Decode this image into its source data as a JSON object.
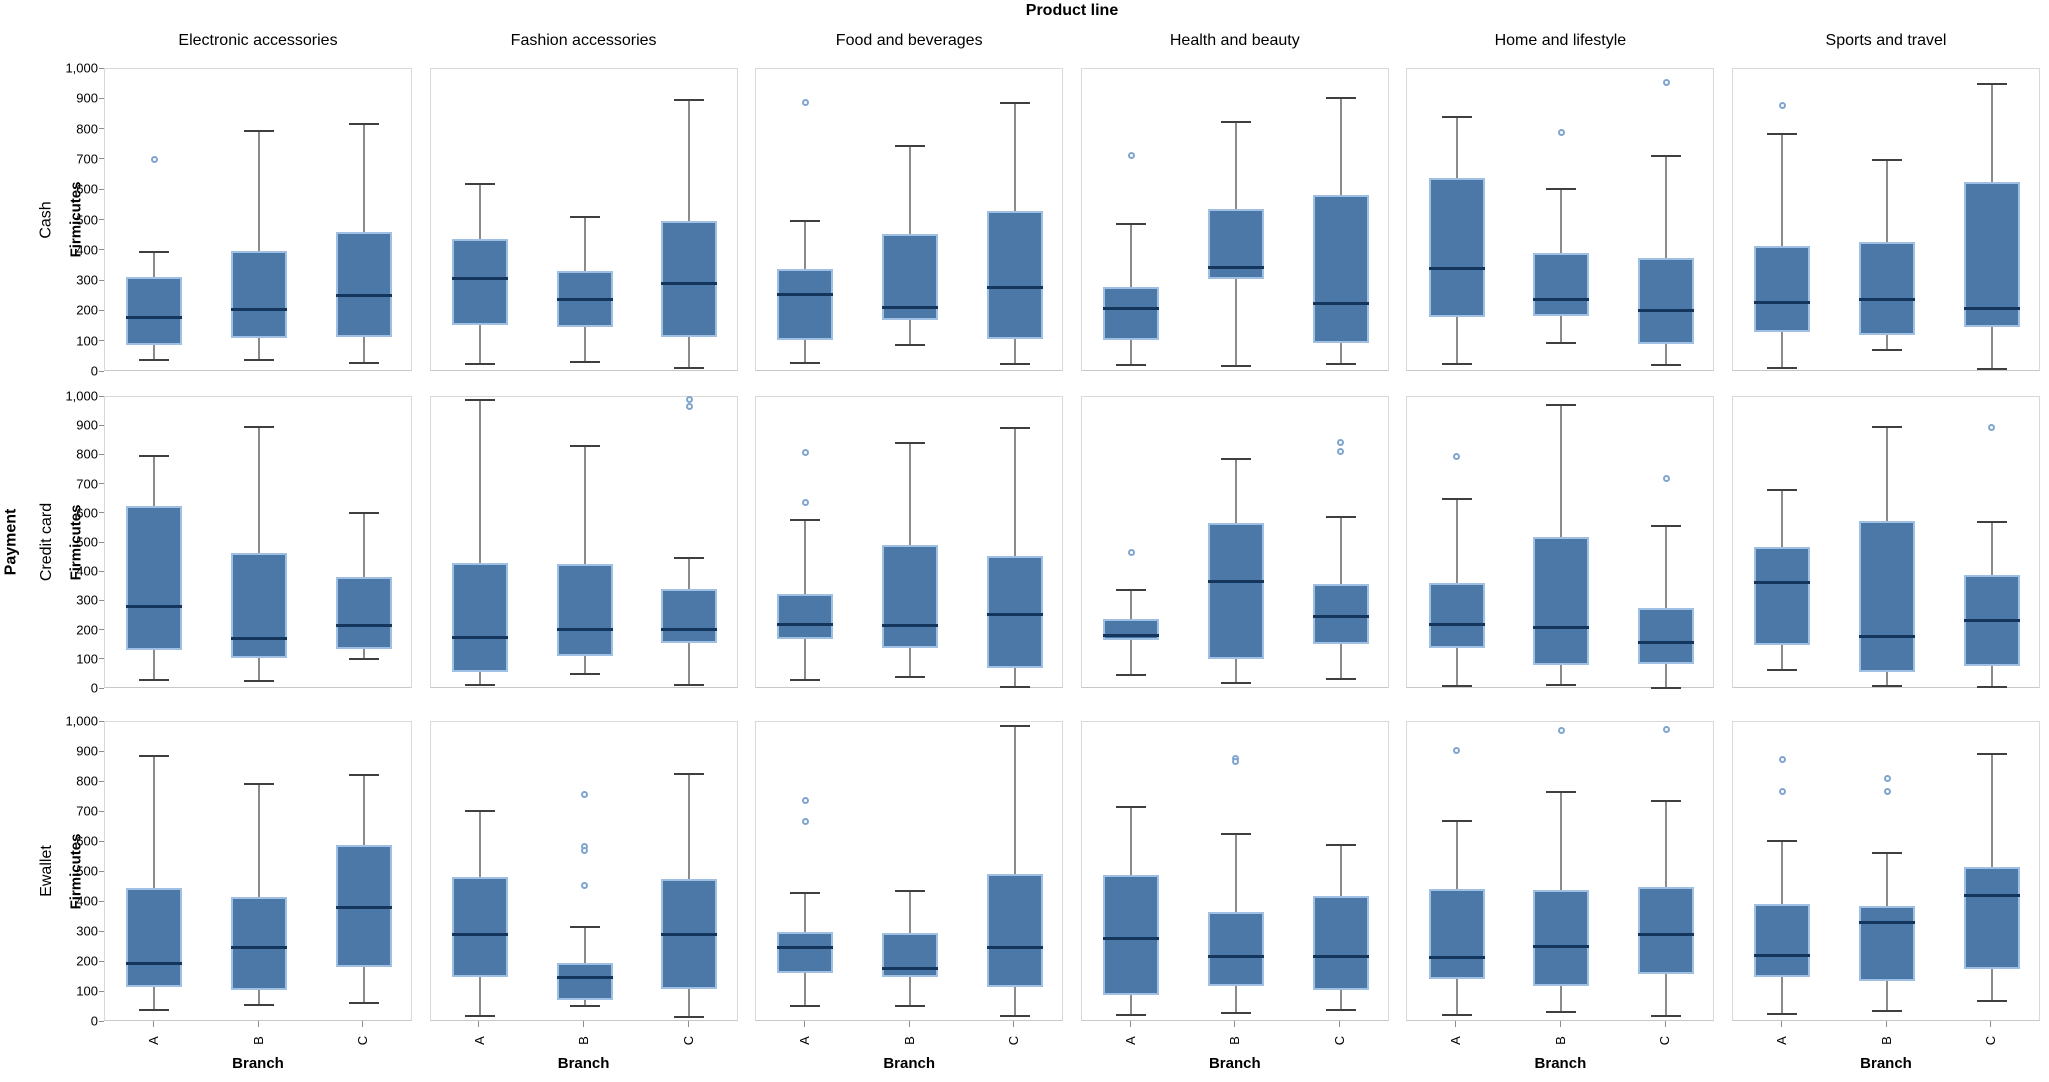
{
  "figure": {
    "title": "Product line",
    "outer_row_label": "Payment"
  },
  "chart_data": {
    "type": "boxplot_grid",
    "title": "Product line",
    "xlabel": "Branch",
    "ylabel": "Firmicutes",
    "x_categories": [
      "A",
      "B",
      "C"
    ],
    "columns": [
      "Electronic accessories",
      "Fashion accessories",
      "Food and beverages",
      "Health and beauty",
      "Home and lifestyle",
      "Sports and travel"
    ],
    "rows": [
      "Cash",
      "Credit card",
      "Ewallet"
    ],
    "ylim": [
      0,
      1000
    ],
    "yticks": [
      0,
      100,
      200,
      300,
      400,
      500,
      600,
      700,
      800,
      900,
      1000
    ],
    "ytick_labels": [
      "0",
      "100",
      "200",
      "300",
      "400",
      "500",
      "600",
      "700",
      "800",
      "900",
      "1,000"
    ],
    "legend": "none",
    "grid": "off",
    "colors": {
      "box_fill": "#4C78A8",
      "box_edge": "#9FC0E2",
      "median": "#14355C",
      "whisker": "#8A8A8A",
      "cap": "#3F3F3F",
      "outlier": "#7FA5CE",
      "panel_border": "#D9D9D9",
      "tick": "#8C8C8C"
    },
    "cells": [
      [
        [
          {
            "low": 40,
            "q1": 90,
            "med": 180,
            "q3": 315,
            "high": 395,
            "out": [
              700
            ]
          },
          {
            "low": 40,
            "q1": 113,
            "med": 205,
            "q3": 400,
            "high": 795,
            "out": []
          },
          {
            "low": 30,
            "q1": 114,
            "med": 251,
            "q3": 461,
            "high": 820,
            "out": []
          }
        ],
        [
          {
            "low": 25,
            "q1": 155,
            "med": 308,
            "q3": 438,
            "high": 619,
            "out": []
          },
          {
            "low": 33,
            "q1": 149,
            "med": 238,
            "q3": 333,
            "high": 510,
            "out": []
          },
          {
            "low": 13,
            "q1": 116,
            "med": 293,
            "q3": 497,
            "high": 899,
            "out": []
          }
        ],
        [
          {
            "low": 30,
            "q1": 107,
            "med": 257,
            "q3": 339,
            "high": 499,
            "out": [
              889
            ]
          },
          {
            "low": 90,
            "q1": 171,
            "med": 213,
            "q3": 455,
            "high": 746,
            "out": []
          },
          {
            "low": 25,
            "q1": 108,
            "med": 279,
            "q3": 533,
            "high": 889,
            "out": []
          }
        ],
        [
          {
            "low": 22,
            "q1": 105,
            "med": 208,
            "q3": 280,
            "high": 488,
            "out": [
              713
            ]
          },
          {
            "low": 19,
            "q1": 307,
            "med": 345,
            "q3": 538,
            "high": 826,
            "out": []
          },
          {
            "low": 27,
            "q1": 97,
            "med": 226,
            "q3": 583,
            "high": 905,
            "out": []
          }
        ],
        [
          {
            "low": 27,
            "q1": 183,
            "med": 342,
            "q3": 640,
            "high": 843,
            "out": []
          },
          {
            "low": 97,
            "q1": 184,
            "med": 240,
            "q3": 393,
            "high": 603,
            "out": [
              791
            ]
          },
          {
            "low": 24,
            "q1": 92,
            "med": 202,
            "q3": 376,
            "high": 713,
            "out": [
              956
            ]
          }
        ],
        [
          {
            "low": 13,
            "q1": 133,
            "med": 230,
            "q3": 417,
            "high": 786,
            "out": [
              881
            ]
          },
          {
            "low": 74,
            "q1": 122,
            "med": 239,
            "q3": 429,
            "high": 700,
            "out": []
          },
          {
            "low": 11,
            "q1": 147,
            "med": 211,
            "q3": 628,
            "high": 952,
            "out": []
          }
        ]
      ],
      [
        [
          {
            "low": 30,
            "q1": 133,
            "med": 283,
            "q3": 628,
            "high": 797,
            "out": []
          },
          {
            "low": 27,
            "q1": 105,
            "med": 172,
            "q3": 465,
            "high": 898,
            "out": []
          },
          {
            "low": 102,
            "q1": 136,
            "med": 217,
            "q3": 385,
            "high": 602,
            "out": []
          }
        ],
        [
          {
            "low": 13,
            "q1": 57,
            "med": 175,
            "q3": 432,
            "high": 990,
            "out": []
          },
          {
            "low": 50,
            "q1": 113,
            "med": 204,
            "q3": 428,
            "high": 832,
            "out": []
          },
          {
            "low": 12,
            "q1": 158,
            "med": 204,
            "q3": 341,
            "high": 449,
            "out": [
              990,
              968
            ]
          }
        ],
        [
          {
            "low": 32,
            "q1": 170,
            "med": 221,
            "q3": 327,
            "high": 580,
            "out": [
              811,
              637
            ]
          },
          {
            "low": 41,
            "q1": 139,
            "med": 218,
            "q3": 493,
            "high": 843,
            "out": []
          },
          {
            "low": 7,
            "q1": 73,
            "med": 256,
            "q3": 455,
            "high": 894,
            "out": []
          }
        ],
        [
          {
            "low": 47,
            "q1": 167,
            "med": 184,
            "q3": 240,
            "high": 339,
            "out": [
              469
            ]
          },
          {
            "low": 22,
            "q1": 104,
            "med": 367,
            "q3": 567,
            "high": 788,
            "out": []
          },
          {
            "low": 33,
            "q1": 153,
            "med": 247,
            "q3": 358,
            "high": 590,
            "out": [
              845,
              814
            ]
          }
        ],
        [
          {
            "low": 10,
            "q1": 141,
            "med": 221,
            "q3": 362,
            "high": 649,
            "out": [
              795
            ]
          },
          {
            "low": 13,
            "q1": 81,
            "med": 210,
            "q3": 521,
            "high": 974,
            "out": []
          },
          {
            "low": 5,
            "q1": 84,
            "med": 158,
            "q3": 278,
            "high": 558,
            "out": [
              721
            ]
          }
        ],
        [
          {
            "low": 65,
            "q1": 150,
            "med": 365,
            "q3": 485,
            "high": 682,
            "out": []
          },
          {
            "low": 10,
            "q1": 59,
            "med": 181,
            "q3": 577,
            "high": 897,
            "out": []
          },
          {
            "low": 8,
            "q1": 79,
            "med": 235,
            "q3": 390,
            "high": 571,
            "out": [
              894
            ]
          }
        ]
      ],
      [
        [
          {
            "low": 40,
            "q1": 115,
            "med": 195,
            "q3": 448,
            "high": 888,
            "out": []
          },
          {
            "low": 57,
            "q1": 107,
            "med": 250,
            "q3": 417,
            "high": 792,
            "out": []
          },
          {
            "low": 62,
            "q1": 185,
            "med": 383,
            "q3": 590,
            "high": 825,
            "out": []
          }
        ],
        [
          {
            "low": 21,
            "q1": 149,
            "med": 293,
            "q3": 482,
            "high": 702,
            "out": []
          },
          {
            "low": 52,
            "q1": 72,
            "med": 147,
            "q3": 197,
            "high": 317,
            "out": [
              758,
              585,
              572,
              455
            ]
          },
          {
            "low": 16,
            "q1": 111,
            "med": 293,
            "q3": 477,
            "high": 827,
            "out": []
          }
        ],
        [
          {
            "low": 55,
            "q1": 165,
            "med": 250,
            "q3": 300,
            "high": 430,
            "out": [
              740,
              670
            ]
          },
          {
            "low": 55,
            "q1": 149,
            "med": 180,
            "q3": 297,
            "high": 436,
            "out": []
          },
          {
            "low": 21,
            "q1": 116,
            "med": 249,
            "q3": 493,
            "high": 986,
            "out": []
          }
        ],
        [
          {
            "low": 25,
            "q1": 91,
            "med": 280,
            "q3": 491,
            "high": 717,
            "out": []
          },
          {
            "low": 30,
            "q1": 119,
            "med": 219,
            "q3": 366,
            "high": 627,
            "out": [
              880,
              868
            ]
          },
          {
            "low": 41,
            "q1": 105,
            "med": 219,
            "q3": 421,
            "high": 591,
            "out": []
          }
        ],
        [
          {
            "low": 25,
            "q1": 143,
            "med": 216,
            "q3": 443,
            "high": 669,
            "out": [
              906
            ]
          },
          {
            "low": 33,
            "q1": 119,
            "med": 252,
            "q3": 441,
            "high": 766,
            "out": [
              972
            ]
          },
          {
            "low": 21,
            "q1": 160,
            "med": 291,
            "q3": 449,
            "high": 738,
            "out": [
              975
            ]
          }
        ],
        [
          {
            "low": 27,
            "q1": 150,
            "med": 222,
            "q3": 395,
            "high": 602,
            "out": [
              875,
              767
            ]
          },
          {
            "low": 36,
            "q1": 138,
            "med": 332,
            "q3": 388,
            "high": 563,
            "out": [
              813,
              767
            ]
          },
          {
            "low": 71,
            "q1": 177,
            "med": 421,
            "q3": 517,
            "high": 895,
            "out": []
          }
        ]
      ]
    ]
  }
}
